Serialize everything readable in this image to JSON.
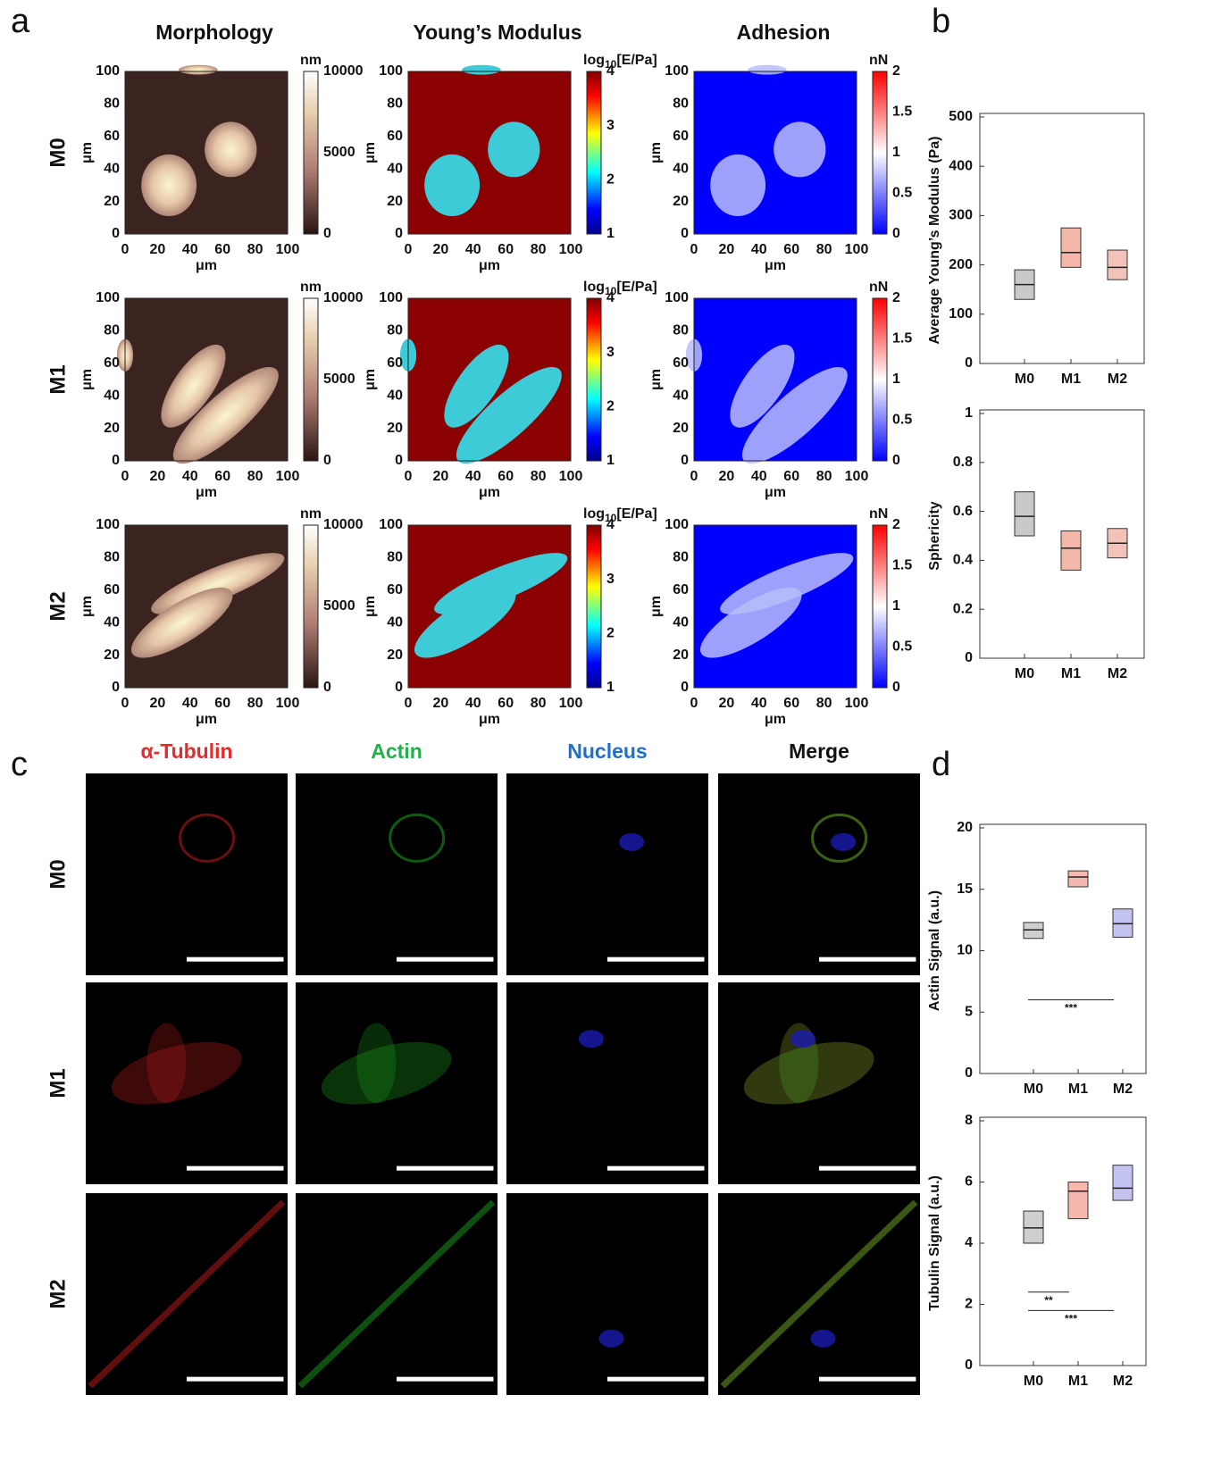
{
  "panel_labels": [
    "a",
    "b",
    "c",
    "d"
  ],
  "afm": {
    "columns": [
      "Morphology",
      "Young’s Modulus",
      "Adhesion"
    ],
    "rows": [
      "M0",
      "M1",
      "M2"
    ],
    "axis_label": "μm",
    "ticks": [
      0,
      20,
      40,
      60,
      80,
      100
    ],
    "colorbars": [
      {
        "unit": "nm",
        "ticks": [
          0,
          5000,
          10000
        ]
      },
      {
        "unit": "log",
        "unit_subscript": "10",
        "unit_rest": "[E/Pa]",
        "ticks": [
          1,
          2,
          3,
          4
        ]
      },
      {
        "unit": "nN",
        "ticks": [
          0,
          0.5,
          1,
          1.5,
          2
        ]
      }
    ]
  },
  "microscopy": {
    "channels": [
      "α-Tubulin",
      "Actin",
      "Nucleus",
      "Merge"
    ],
    "channel_colors": [
      "#e52a2a",
      "#23b04a",
      "#1f6fd0",
      "#111111"
    ],
    "rows": [
      "M0",
      "M1",
      "M2"
    ]
  },
  "charts": [
    {
      "type": "box",
      "panel": "b",
      "ylabel": "Average Young’s Modulus (Pa)",
      "categories": [
        "M0",
        "M1",
        "M2"
      ],
      "ylim": [
        0,
        500
      ],
      "yticks": [
        0,
        100,
        200,
        300,
        400,
        500
      ],
      "boxes": [
        {
          "q1": 130,
          "median": 160,
          "q3": 190,
          "color": "#c9c9c9"
        },
        {
          "q1": 195,
          "median": 225,
          "q3": 275,
          "color": "#f3b8aa"
        },
        {
          "q1": 170,
          "median": 195,
          "q3": 230,
          "color": "#f3c2b8"
        }
      ]
    },
    {
      "type": "box",
      "panel": "b",
      "ylabel": "Sphericity",
      "categories": [
        "M0",
        "M1",
        "M2"
      ],
      "ylim": [
        0,
        1
      ],
      "yticks": [
        0,
        0.2,
        0.4,
        0.6,
        0.8,
        1
      ],
      "boxes": [
        {
          "q1": 0.5,
          "median": 0.58,
          "q3": 0.68,
          "color": "#c9c9c9"
        },
        {
          "q1": 0.36,
          "median": 0.45,
          "q3": 0.52,
          "color": "#f3b8aa"
        },
        {
          "q1": 0.41,
          "median": 0.47,
          "q3": 0.53,
          "color": "#f3c2b8"
        }
      ]
    },
    {
      "type": "box",
      "panel": "d",
      "ylabel": "Actin Signal (a.u.)",
      "categories": [
        "M0",
        "M1",
        "M2"
      ],
      "ylim": [
        0,
        20
      ],
      "yticks": [
        0,
        5,
        10,
        15,
        20
      ],
      "boxes": [
        {
          "q1": 11,
          "median": 11.7,
          "q3": 12.3,
          "color": "#cfcfcf"
        },
        {
          "q1": 15.2,
          "median": 16,
          "q3": 16.5,
          "color": "#f4b8ae"
        },
        {
          "q1": 11.1,
          "median": 12.2,
          "q3": 13.4,
          "color": "#c3c3f2"
        }
      ],
      "annotations": [
        {
          "text": "***",
          "y": 6,
          "between": [
            "M0",
            "M2"
          ]
        }
      ]
    },
    {
      "type": "box",
      "panel": "d",
      "ylabel": "Tubulin Signal (a.u.)",
      "categories": [
        "M0",
        "M1",
        "M2"
      ],
      "ylim": [
        0,
        8
      ],
      "yticks": [
        0,
        2,
        4,
        6,
        8
      ],
      "boxes": [
        {
          "q1": 4,
          "median": 4.5,
          "q3": 5.05,
          "color": "#cfcfcf"
        },
        {
          "q1": 4.8,
          "median": 5.7,
          "q3": 6,
          "color": "#f4b8ae"
        },
        {
          "q1": 5.4,
          "median": 5.8,
          "q3": 6.55,
          "color": "#c3c3f2"
        }
      ],
      "annotations": [
        {
          "text": "**",
          "y": 2.4,
          "between": [
            "M0",
            "M1"
          ]
        },
        {
          "text": "***",
          "y": 1.8,
          "between": [
            "M0",
            "M2"
          ]
        }
      ]
    }
  ]
}
